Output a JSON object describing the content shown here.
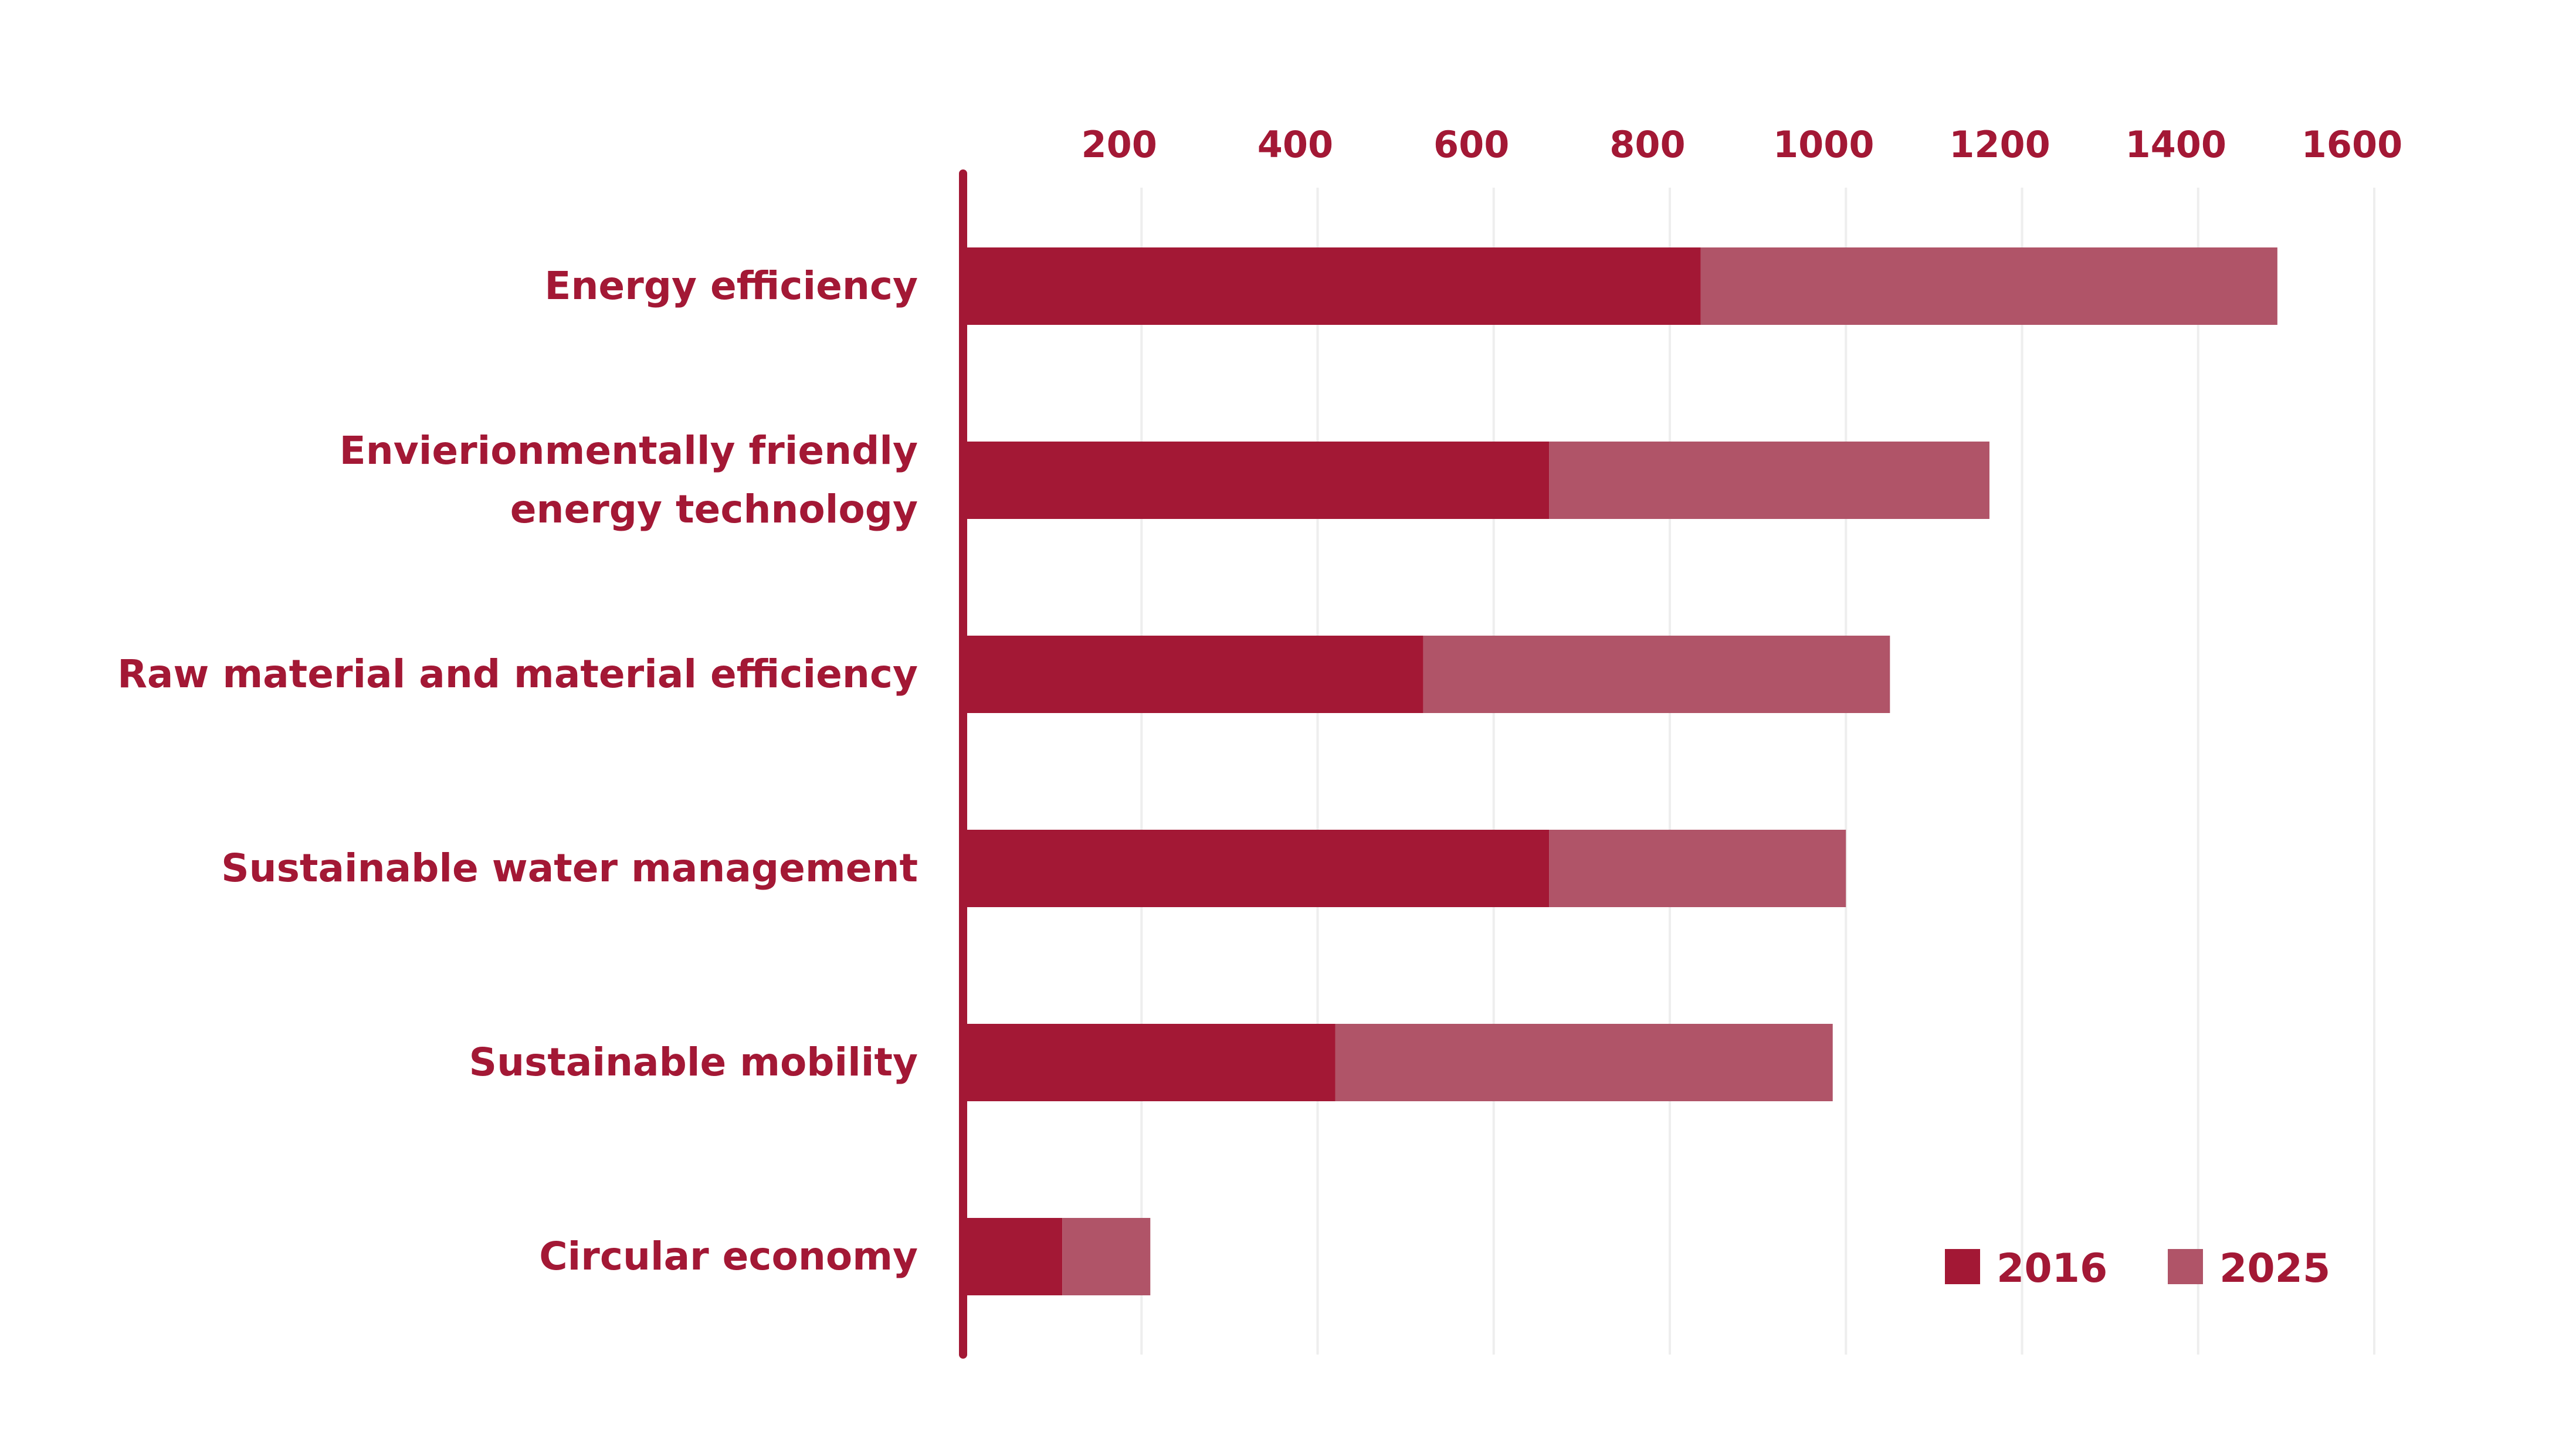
{
  "chart_data": {
    "type": "bar",
    "orientation": "horizontal",
    "stacked": true,
    "title": "",
    "xlabel": "",
    "ylabel": "",
    "xlim": [
      0,
      1600
    ],
    "x_ticks": [
      200,
      400,
      600,
      800,
      1000,
      1200,
      1400,
      1600
    ],
    "x_axis_position": "top",
    "grid": "vertical",
    "legend_position": "bottom-right",
    "categories": [
      [
        "Energy efficiency"
      ],
      [
        "Envierionmentally friendly",
        "energy technology"
      ],
      [
        "Raw material and material efficiency"
      ],
      [
        "Sustainable water management"
      ],
      [
        "Sustainable mobility"
      ],
      [
        "Circular economy"
      ]
    ],
    "series": [
      {
        "name": "2016",
        "color": "#a31835",
        "values": [
          835,
          663,
          520,
          663,
          420,
          110
        ]
      },
      {
        "name": "2025",
        "color": "#b05468",
        "values": [
          655,
          500,
          530,
          337,
          565,
          100
        ]
      }
    ],
    "colors": {
      "text": "#a31835",
      "axis": "#a31835",
      "grid": "#eeeeee"
    }
  }
}
